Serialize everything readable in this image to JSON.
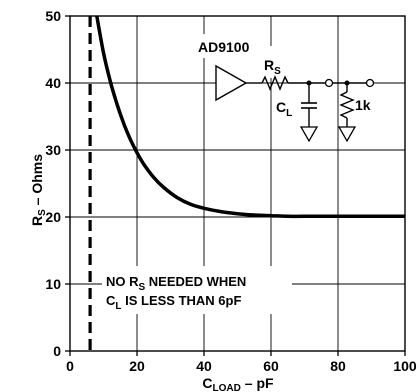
{
  "chart_data": {
    "type": "line",
    "xlabel": "C",
    "xlabel_sub": "LOAD",
    "xlabel_unit": " – pF",
    "ylabel": "R",
    "ylabel_sub": "S",
    "ylabel_unit": " – Ohms",
    "xlim": [
      0,
      100
    ],
    "ylim": [
      0,
      50
    ],
    "x_ticks": [
      0,
      20,
      40,
      60,
      80,
      100
    ],
    "y_ticks": [
      0,
      10,
      20,
      30,
      40,
      50
    ],
    "x_tick_labels": [
      "0",
      "20",
      "40",
      "60",
      "80",
      100
    ],
    "y_tick_labels": [
      "0",
      "10",
      "20",
      "30",
      "40",
      "50"
    ],
    "grid": true,
    "series": [
      {
        "x": [
          8,
          10,
          12,
          14,
          16,
          18,
          20,
          22,
          25,
          28,
          32,
          36,
          40,
          45,
          50,
          55,
          60,
          65,
          70,
          80,
          90,
          100
        ],
        "y": [
          50,
          44.5,
          40.3,
          36.9,
          34.0,
          31.6,
          29.6,
          27.9,
          25.9,
          24.4,
          22.9,
          21.9,
          21.3,
          20.8,
          20.5,
          20.3,
          20.2,
          20.1,
          20.1,
          20.1,
          20.1,
          20.1
        ]
      }
    ],
    "threshold_line": {
      "x": 6,
      "style": "dashed"
    },
    "annotation": {
      "line1_a": "NO R",
      "line1_sub": "S",
      "line1_b": " NEEDED WHEN",
      "line2_a": "C",
      "line2_sub": "L",
      "line2_b": " IS LESS THAN 6pF"
    }
  },
  "circuit": {
    "amp_label": "AD9100",
    "rs_label": "R",
    "rs_sub": "S",
    "cl_label": "C",
    "cl_sub": "L",
    "r_load_label": "1k"
  }
}
